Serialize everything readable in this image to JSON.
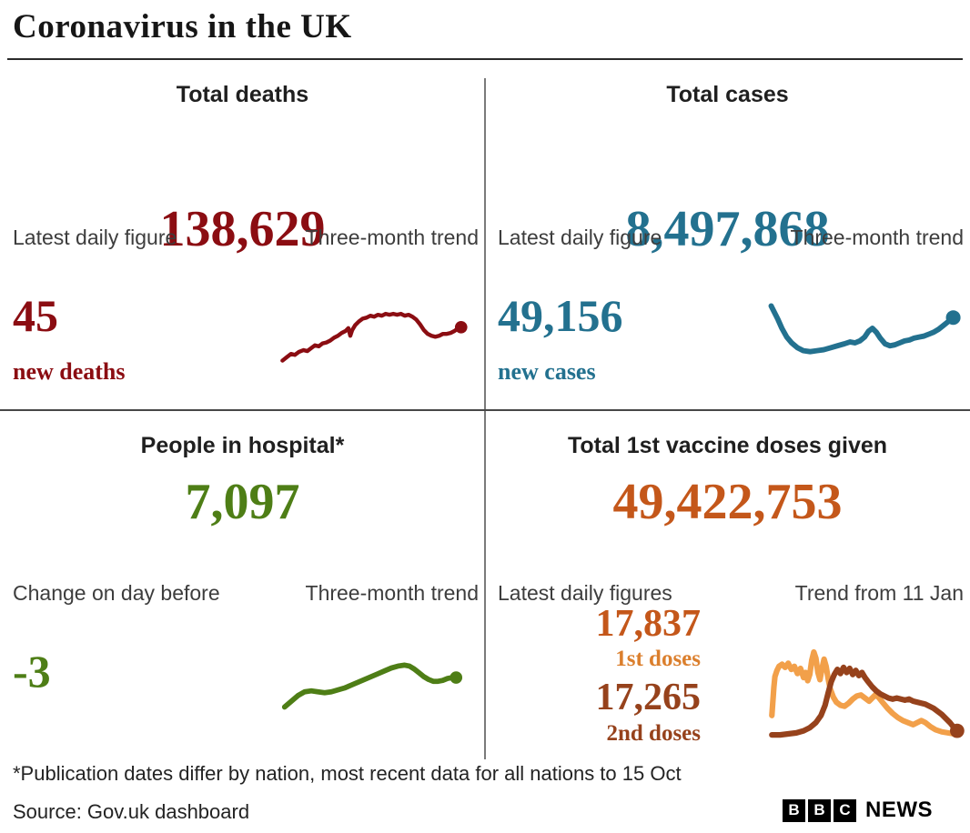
{
  "header": {
    "title": "Coronavirus in the UK"
  },
  "colors": {
    "heading": "#1f1f1f",
    "label_gray": "#3d3d3d",
    "divider_horizontal": "#474747",
    "divider_vertical": "#7a7a7a",
    "deaths_red": "#8b0d12",
    "cases_teal": "#23718f",
    "hospital_green": "#4e7e16",
    "vaccine_orange": "#c4571a",
    "first_doses_orange": "#db7f2d",
    "second_doses_brown": "#96421c",
    "background": "#ffffff"
  },
  "panels": {
    "deaths": {
      "title": "Total deaths",
      "total": "138,629",
      "label_left": "Latest daily figure",
      "label_right": "Three-month trend",
      "daily_value": "45",
      "daily_caption": "new deaths",
      "accent": "#8b0d12"
    },
    "cases": {
      "title": "Total cases",
      "total": "8,497,868",
      "label_left": "Latest daily figure",
      "label_right": "Three-month trend",
      "daily_value": "49,156",
      "daily_caption": "new cases",
      "accent": "#23718f"
    },
    "hospital": {
      "title": "People in hospital*",
      "total": "7,097",
      "label_left": "Change on day before",
      "label_right": "Three-month trend",
      "daily_value": "-3",
      "accent": "#4e7e16"
    },
    "vaccines": {
      "title": "Total 1st vaccine doses given",
      "total": "49,422,753",
      "label_left": "Latest daily figures",
      "label_right": "Trend from 11 Jan",
      "first_value": "17,837",
      "first_caption": "1st doses",
      "second_value": "17,265",
      "second_caption": "2nd doses",
      "accent_total": "#c4571a",
      "accent_first": "#db7f2d",
      "accent_second": "#96421c"
    }
  },
  "footer": {
    "footnote": "*Publication dates differ by nation, most recent data for all nations to 15 Oct",
    "source": "Source: Gov.uk dashboard",
    "logo_blocks": [
      "B",
      "B",
      "C"
    ],
    "logo_text": "NEWS"
  },
  "chart_data": [
    {
      "id": "deaths-trend",
      "type": "line",
      "title": "Total deaths — three-month trend",
      "axes": "none (sparkline, unlabelled)",
      "note": "points are [x,y] in a 200x80 viewBox; lower y = higher value; shape rises from low start to a plateau, dips, then ticks up to an end dot",
      "series": [
        {
          "name": "New deaths trend",
          "color": "#8b0d12",
          "points": [
            [
              8,
              71
            ],
            [
              13,
              67
            ],
            [
              17,
              64
            ],
            [
              21,
              65
            ],
            [
              25,
              62
            ],
            [
              30,
              60
            ],
            [
              34,
              61
            ],
            [
              38,
              58
            ],
            [
              42,
              55
            ],
            [
              46,
              56
            ],
            [
              50,
              53
            ],
            [
              54,
              52
            ],
            [
              58,
              50
            ],
            [
              62,
              47
            ],
            [
              66,
              45
            ],
            [
              70,
              42
            ],
            [
              74,
              40
            ],
            [
              77,
              37
            ],
            [
              79,
              45
            ],
            [
              81,
              39
            ],
            [
              84,
              34
            ],
            [
              88,
              30
            ],
            [
              92,
              27
            ],
            [
              96,
              26
            ],
            [
              100,
              24
            ],
            [
              104,
              25
            ],
            [
              108,
              23
            ],
            [
              112,
              24
            ],
            [
              116,
              22
            ],
            [
              120,
              23
            ],
            [
              124,
              22
            ],
            [
              128,
              23
            ],
            [
              132,
              22
            ],
            [
              136,
              24
            ],
            [
              140,
              23
            ],
            [
              144,
              25
            ],
            [
              148,
              28
            ],
            [
              152,
              33
            ],
            [
              156,
              39
            ],
            [
              160,
              43
            ],
            [
              164,
              45
            ],
            [
              168,
              46
            ],
            [
              172,
              45
            ],
            [
              176,
              43
            ],
            [
              180,
              43
            ],
            [
              184,
              42
            ],
            [
              188,
              40
            ],
            [
              192,
              37
            ],
            [
              195,
              36
            ]
          ]
        }
      ]
    },
    {
      "id": "cases-trend",
      "type": "line",
      "title": "Total cases — three-month trend",
      "axes": "none (sparkline, unlabelled)",
      "note": "starts high, falls to a trough, wobbles with a mid bump, rises to an end dot",
      "series": [
        {
          "name": "New cases trend",
          "color": "#23718f",
          "points": [
            [
              7,
              17
            ],
            [
              10,
              23
            ],
            [
              14,
              31
            ],
            [
              18,
              40
            ],
            [
              23,
              49
            ],
            [
              28,
              55
            ],
            [
              34,
              60
            ],
            [
              40,
              63
            ],
            [
              47,
              64
            ],
            [
              54,
              63
            ],
            [
              61,
              62
            ],
            [
              68,
              60
            ],
            [
              75,
              58
            ],
            [
              82,
              56
            ],
            [
              88,
              54
            ],
            [
              93,
              55
            ],
            [
              98,
              53
            ],
            [
              103,
              49
            ],
            [
              107,
              43
            ],
            [
              111,
              40
            ],
            [
              115,
              44
            ],
            [
              119,
              50
            ],
            [
              124,
              56
            ],
            [
              129,
              58
            ],
            [
              134,
              57
            ],
            [
              139,
              55
            ],
            [
              144,
              53
            ],
            [
              149,
              52
            ],
            [
              154,
              50
            ],
            [
              159,
              49
            ],
            [
              164,
              48
            ],
            [
              169,
              46
            ],
            [
              174,
              44
            ],
            [
              179,
              41
            ],
            [
              184,
              37
            ],
            [
              189,
              33
            ],
            [
              194,
              29
            ]
          ]
        }
      ]
    },
    {
      "id": "hospital-trend",
      "type": "line",
      "title": "People in hospital — three-month trend",
      "axes": "none (sparkline, unlabelled)",
      "note": "gentle rise from lower left to a peak, small dip, levels off to an end dot; 200x85 viewBox",
      "series": [
        {
          "name": "People in hospital trend",
          "color": "#4e7e16",
          "points": [
            [
              10,
              74
            ],
            [
              17,
              68
            ],
            [
              24,
              62
            ],
            [
              31,
              58
            ],
            [
              38,
              57
            ],
            [
              45,
              58
            ],
            [
              52,
              59
            ],
            [
              59,
              58
            ],
            [
              66,
              56
            ],
            [
              73,
              54
            ],
            [
              80,
              51
            ],
            [
              87,
              48
            ],
            [
              94,
              45
            ],
            [
              101,
              42
            ],
            [
              108,
              39
            ],
            [
              115,
              36
            ],
            [
              122,
              33
            ],
            [
              129,
              31
            ],
            [
              136,
              30
            ],
            [
              141,
              31
            ],
            [
              146,
              34
            ],
            [
              151,
              38
            ],
            [
              156,
              42
            ],
            [
              161,
              45
            ],
            [
              166,
              47
            ],
            [
              171,
              47
            ],
            [
              176,
              46
            ],
            [
              181,
              44
            ],
            [
              186,
              43
            ],
            [
              190,
              43
            ]
          ]
        }
      ]
    },
    {
      "id": "vaccine-trend",
      "type": "line",
      "title": "Daily vaccine doses — trend from 11 Jan",
      "axes": "none (sparkline, unlabelled)",
      "note": "200x120 viewBox; 1st doses (orange) spikes early then declines; 2nd doses (brown) rises later, plateaus, then declines to an end dot",
      "series": [
        {
          "name": "1st doses",
          "color": "#f2a04a",
          "points": [
            [
              14,
              86
            ],
            [
              15,
              72
            ],
            [
              16,
              58
            ],
            [
              17,
              48
            ],
            [
              19,
              42
            ],
            [
              21,
              38
            ],
            [
              24,
              36
            ],
            [
              27,
              39
            ],
            [
              30,
              35
            ],
            [
              33,
              41
            ],
            [
              36,
              38
            ],
            [
              39,
              45
            ],
            [
              42,
              40
            ],
            [
              45,
              49
            ],
            [
              47,
              44
            ],
            [
              49,
              52
            ],
            [
              51,
              46
            ],
            [
              53,
              32
            ],
            [
              55,
              24
            ],
            [
              57,
              30
            ],
            [
              59,
              44
            ],
            [
              61,
              51
            ],
            [
              63,
              40
            ],
            [
              65,
              31
            ],
            [
              67,
              38
            ],
            [
              69,
              50
            ],
            [
              71,
              60
            ],
            [
              74,
              68
            ],
            [
              77,
              73
            ],
            [
              81,
              76
            ],
            [
              85,
              77
            ],
            [
              89,
              74
            ],
            [
              93,
              70
            ],
            [
              97,
              67
            ],
            [
              101,
              66
            ],
            [
              105,
              69
            ],
            [
              109,
              72
            ],
            [
              112,
              69
            ],
            [
              115,
              66
            ],
            [
              118,
              68
            ],
            [
              122,
              73
            ],
            [
              127,
              79
            ],
            [
              132,
              84
            ],
            [
              137,
              88
            ],
            [
              142,
              91
            ],
            [
              147,
              93
            ],
            [
              152,
              95
            ],
            [
              156,
              93
            ],
            [
              160,
              91
            ],
            [
              164,
              93
            ],
            [
              169,
              97
            ],
            [
              174,
              100
            ],
            [
              180,
              102
            ],
            [
              186,
              103
            ],
            [
              192,
              104
            ],
            [
              195,
              104
            ]
          ]
        },
        {
          "name": "2nd doses",
          "color": "#96421c",
          "points": [
            [
              14,
              105
            ],
            [
              22,
              105
            ],
            [
              30,
              104
            ],
            [
              38,
              103
            ],
            [
              45,
              101
            ],
            [
              51,
              98
            ],
            [
              57,
              93
            ],
            [
              62,
              86
            ],
            [
              66,
              76
            ],
            [
              69,
              64
            ],
            [
              72,
              53
            ],
            [
              75,
              46
            ],
            [
              78,
              41
            ],
            [
              81,
              45
            ],
            [
              84,
              39
            ],
            [
              87,
              44
            ],
            [
              90,
              40
            ],
            [
              93,
              46
            ],
            [
              96,
              42
            ],
            [
              99,
              47
            ],
            [
              102,
              44
            ],
            [
              105,
              49
            ],
            [
              108,
              53
            ],
            [
              112,
              58
            ],
            [
              116,
              62
            ],
            [
              120,
              65
            ],
            [
              124,
              67
            ],
            [
              128,
              69
            ],
            [
              132,
              70
            ],
            [
              136,
              69
            ],
            [
              140,
              70
            ],
            [
              144,
              71
            ],
            [
              148,
              70
            ],
            [
              152,
              72
            ],
            [
              156,
              73
            ],
            [
              160,
              74
            ],
            [
              164,
              75
            ],
            [
              168,
              77
            ],
            [
              172,
              79
            ],
            [
              176,
              82
            ],
            [
              180,
              85
            ],
            [
              184,
              89
            ],
            [
              188,
              93
            ],
            [
              192,
              98
            ],
            [
              195,
              101
            ]
          ]
        }
      ]
    }
  ]
}
